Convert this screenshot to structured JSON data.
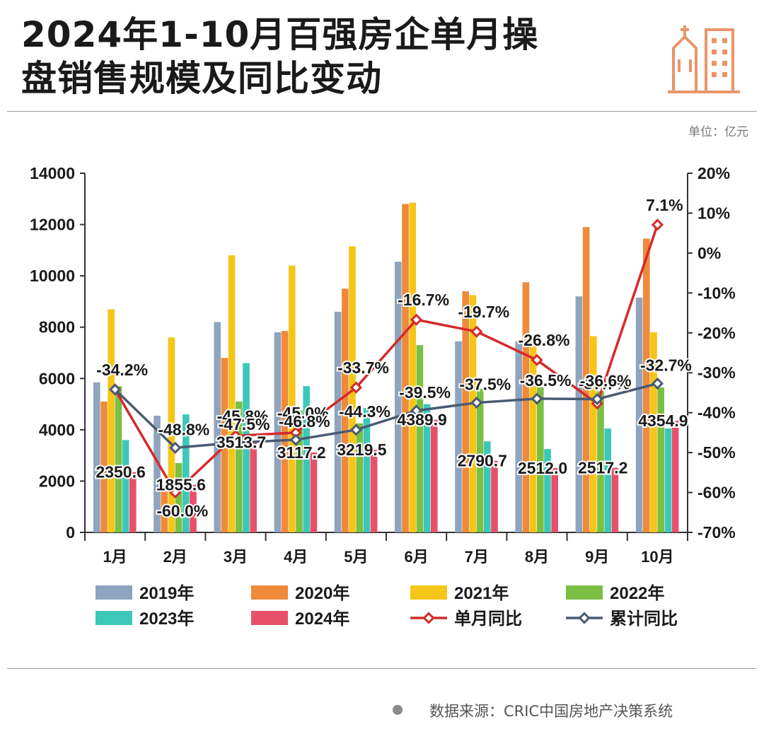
{
  "header": {
    "title_line1": "2024年1-10月百强房企单月操",
    "title_line2": "盘销售规模及同比变动",
    "logo_icon": "city-buildings-icon",
    "accent_color": "#E8956A"
  },
  "unit_label": "单位：亿元",
  "source_label": "数据来源：CRIC中国房地产决策系统",
  "chart_data": {
    "type": "bar",
    "categories": [
      "1月",
      "2月",
      "3月",
      "4月",
      "5月",
      "6月",
      "7月",
      "8月",
      "9月",
      "10月"
    ],
    "ylim": [
      0,
      14000
    ],
    "yticks": [
      0,
      2000,
      4000,
      6000,
      8000,
      10000,
      12000,
      14000
    ],
    "y2lim": [
      -70,
      20
    ],
    "y2ticks": [
      -70,
      -60,
      -50,
      -40,
      -30,
      -20,
      -10,
      0,
      10,
      20
    ],
    "grid": false,
    "legend_position": "bottom",
    "series": [
      {
        "name": "2019年",
        "color": "#8EA4BF",
        "values": [
          5850,
          4550,
          8200,
          7800,
          8600,
          10550,
          7450,
          7450,
          9200,
          9150
        ]
      },
      {
        "name": "2020年",
        "color": "#EE8A3A",
        "values": [
          5100,
          1600,
          6800,
          7850,
          9500,
          12800,
          9400,
          9750,
          11900,
          11450
        ]
      },
      {
        "name": "2021年",
        "color": "#F5C518",
        "values": [
          8700,
          7600,
          10800,
          10400,
          11150,
          12850,
          9250,
          7700,
          7650,
          7800
        ]
      },
      {
        "name": "2022年",
        "color": "#7BBF45",
        "values": [
          5700,
          2700,
          5100,
          4750,
          4250,
          7300,
          5600,
          5650,
          5500,
          5650
        ]
      },
      {
        "name": "2023年",
        "color": "#3CC8B8",
        "values": [
          3600,
          4600,
          6600,
          5700,
          4850,
          5000,
          3550,
          3250,
          4050,
          4050
        ]
      },
      {
        "name": "2024年",
        "color": "#E8506A",
        "values": [
          2350.6,
          1855.6,
          3513.7,
          3117.2,
          3219.5,
          4389.9,
          2790.7,
          2512.0,
          2517.2,
          4354.9
        ]
      }
    ],
    "line_series": [
      {
        "name": "单月同比",
        "axis": "right",
        "color": "#D42A2A",
        "values": [
          -34.2,
          -60.0,
          -45.8,
          -45.0,
          -33.7,
          -16.7,
          -19.7,
          -26.8,
          -37.7,
          7.1
        ]
      },
      {
        "name": "累计同比",
        "axis": "right",
        "color": "#4A5A72",
        "values": [
          -34.2,
          -48.8,
          -47.5,
          -46.8,
          -44.3,
          -39.5,
          -37.5,
          -36.5,
          -36.6,
          -32.7
        ]
      }
    ],
    "bar_labels": [
      "2350.6",
      "1855.6",
      "3513.7",
      "3117.2",
      "3219.5",
      "4389.9",
      "2790.7",
      "2512.0",
      "2517.2",
      "4354.9"
    ],
    "single_labels": [
      "-34.2%",
      "-60.0%",
      "-45.8%",
      "-45.0%",
      "-33.7%",
      "-16.7%",
      "-19.7%",
      "-26.8%",
      "-37.7%",
      "7.1%"
    ],
    "cumulative_labels": [
      "",
      "-48.8%",
      "-47.5%",
      "-46.8%",
      "-44.3%",
      "-39.5%",
      "-37.5%",
      "-36.5%",
      "-36.6%",
      "-32.7%"
    ]
  }
}
